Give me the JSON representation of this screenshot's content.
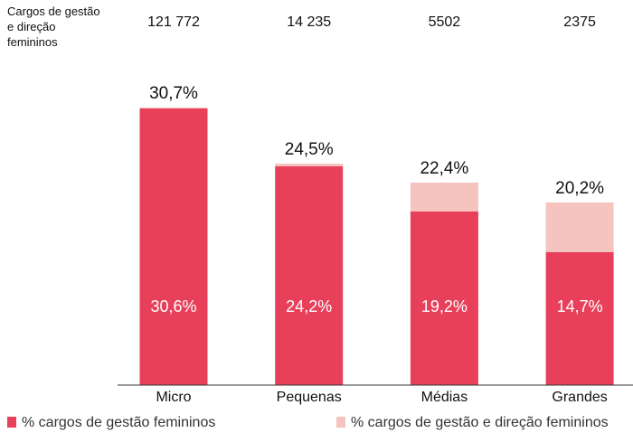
{
  "chart_data": {
    "type": "stacked_bar",
    "count_title": "Cargos de gestão e direção femininos",
    "counts": [
      121772,
      14235,
      5502,
      2375
    ],
    "count_labels": [
      "121 772",
      "14 235",
      "5502",
      "2375"
    ],
    "categories": [
      "Micro",
      "Pequenas",
      "Médias",
      "Grandes"
    ],
    "series": [
      {
        "name": "% cargos de gestão femininos",
        "color": "#e8405a",
        "values": [
          30.6,
          24.2,
          19.2,
          14.7
        ],
        "value_labels": [
          "30,6%",
          "24,2%",
          "19,2%",
          "14,7%"
        ]
      },
      {
        "name": "% cargos de gestão e direção femininos",
        "color": "#f5c4bf",
        "values": [
          0.1,
          0.3,
          3.2,
          5.5
        ]
      }
    ],
    "totals": [
      30.7,
      24.5,
      22.4,
      20.2
    ],
    "total_labels": [
      "30,7%",
      "24,5%",
      "22,4%",
      "20,2%"
    ],
    "ylim": [
      0,
      35
    ]
  }
}
